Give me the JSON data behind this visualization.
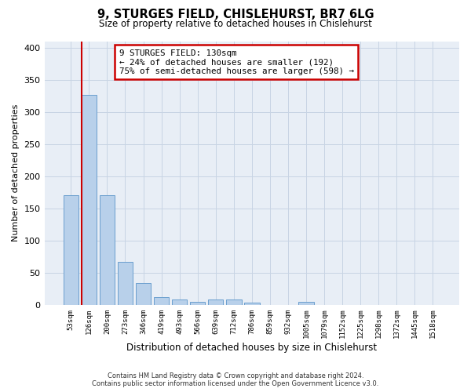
{
  "title": "9, STURGES FIELD, CHISLEHURST, BR7 6LG",
  "subtitle": "Size of property relative to detached houses in Chislehurst",
  "xlabel": "Distribution of detached houses by size in Chislehurst",
  "ylabel": "Number of detached properties",
  "footer_line1": "Contains HM Land Registry data © Crown copyright and database right 2024.",
  "footer_line2": "Contains public sector information licensed under the Open Government Licence v3.0.",
  "categories": [
    "53sqm",
    "126sqm",
    "200sqm",
    "273sqm",
    "346sqm",
    "419sqm",
    "493sqm",
    "566sqm",
    "639sqm",
    "712sqm",
    "786sqm",
    "859sqm",
    "932sqm",
    "1005sqm",
    "1079sqm",
    "1152sqm",
    "1225sqm",
    "1298sqm",
    "1372sqm",
    "1445sqm",
    "1518sqm"
  ],
  "values": [
    170,
    327,
    170,
    67,
    34,
    12,
    9,
    5,
    9,
    9,
    3,
    0,
    0,
    5,
    0,
    0,
    0,
    0,
    0,
    0,
    0
  ],
  "bar_color": "#b8d0ea",
  "bar_edge_color": "#6a9fcf",
  "grid_color": "#c8d4e4",
  "bg_color": "#e8eef6",
  "vline_color": "#cc0000",
  "annotation_line1": "9 STURGES FIELD: 130sqm",
  "annotation_line2": "← 24% of detached houses are smaller (192)",
  "annotation_line3": "75% of semi-detached houses are larger (598) →",
  "annotation_box_facecolor": "#ffffff",
  "annotation_box_edgecolor": "#cc0000",
  "ylim_max": 410,
  "yticks": [
    0,
    50,
    100,
    150,
    200,
    250,
    300,
    350,
    400
  ]
}
